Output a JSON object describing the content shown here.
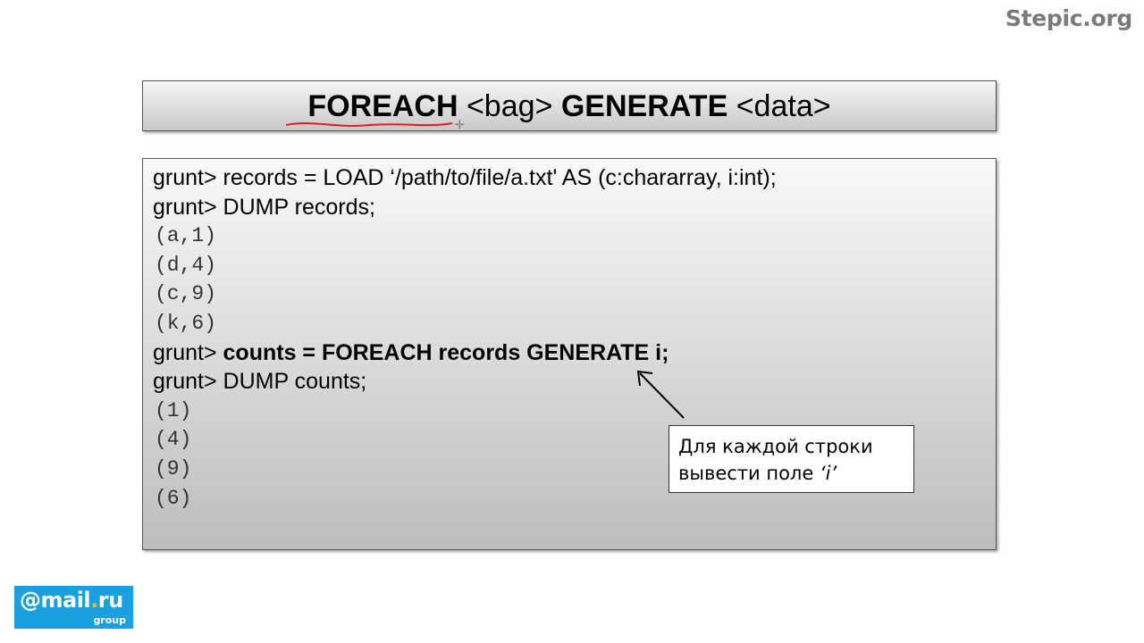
{
  "brand": {
    "text": "Stepic.org"
  },
  "title": {
    "foreach": "FOREACH",
    "bag": "<bag>",
    "generate": "GENERATE",
    "data": "<data>"
  },
  "code": {
    "line1": "grunt> records = LOAD ‘/path/to/file/a.txt' AS (c:chararray, i:int);",
    "line2": "grunt> DUMP records;",
    "out1": [
      "(a,1)",
      "(d,4)",
      "(c,9)",
      "(k,6)"
    ],
    "prompt3": "grunt> ",
    "line3_bold": "counts = FOREACH records GENERATE i;",
    "line4": "grunt> DUMP counts;",
    "out2": [
      "(1)",
      "(4)",
      "(9)",
      "(6)"
    ]
  },
  "callout": {
    "line1": "Для каждой строки",
    "line2_prefix": "вывести поле ",
    "line2_var": "‘i’"
  },
  "logo": {
    "main_prefix": "@mail",
    "main_dot": ".",
    "main_suffix": "ru",
    "sub": "group"
  },
  "colors": {
    "brand": "#7a7a7a",
    "underline": "#e02020",
    "logo_bg": "#1aa0e0",
    "logo_dot": "#ffb21a"
  }
}
